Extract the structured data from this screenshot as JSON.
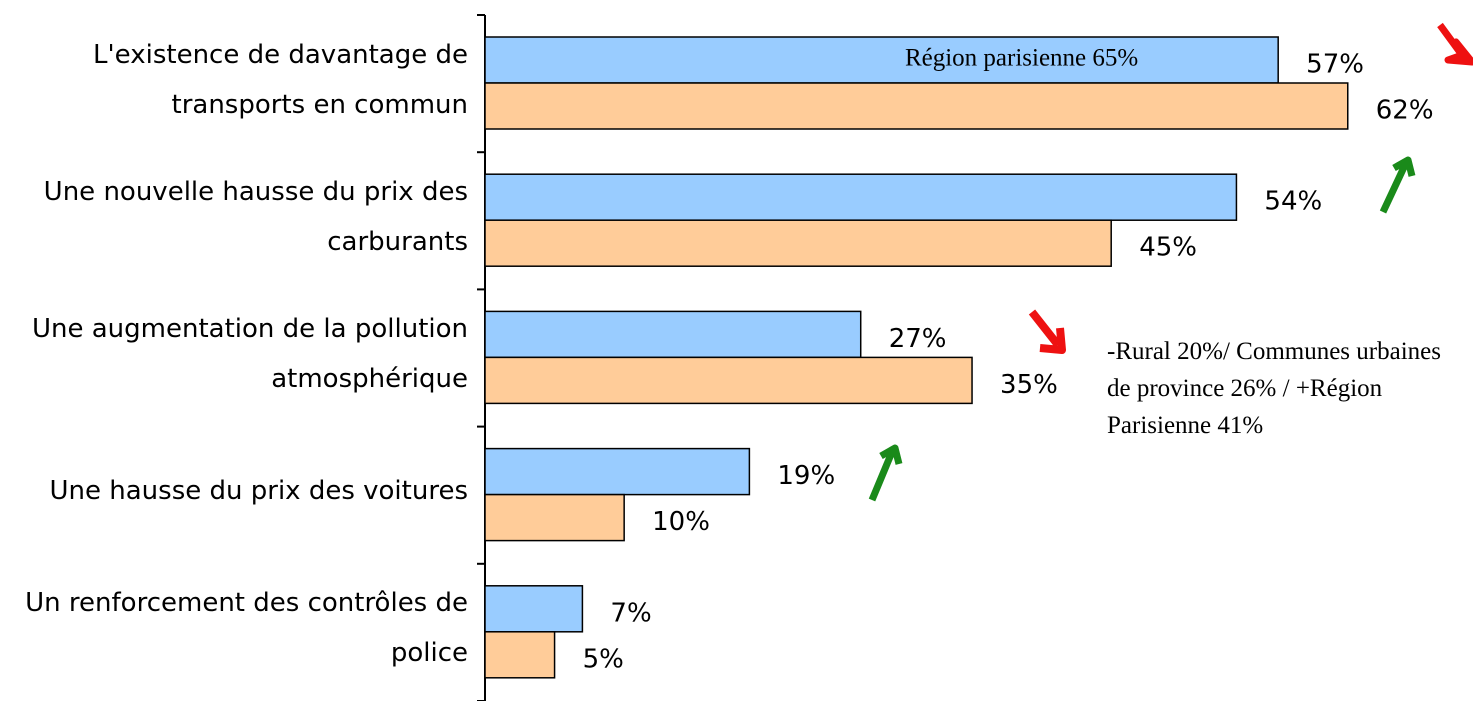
{
  "chart_data": {
    "type": "bar",
    "orientation": "horizontal",
    "categories": [
      "L'existence de davantage de transports en commun",
      "Une nouvelle hausse du prix des carburants",
      "Une augmentation de la pollution atmosphérique",
      "Une hausse du prix des voitures",
      "Un renforcement des contrôles de police"
    ],
    "series": [
      {
        "color": "#99ccff",
        "values": [
          57,
          54,
          27,
          19,
          7
        ],
        "value_labels": [
          "57%",
          "54%",
          "27%",
          "19%",
          "7%"
        ]
      },
      {
        "color": "#ffcc99",
        "values": [
          62,
          45,
          35,
          10,
          5
        ],
        "value_labels": [
          "62%",
          "45%",
          "35%",
          "10%",
          "5%"
        ]
      }
    ],
    "xlim": [
      0,
      71
    ],
    "annotations": [
      "Région parisienne 65%",
      "-Rural 20%/ Communes urbaines de province 26% / +Région Parisienne 41%"
    ]
  }
}
